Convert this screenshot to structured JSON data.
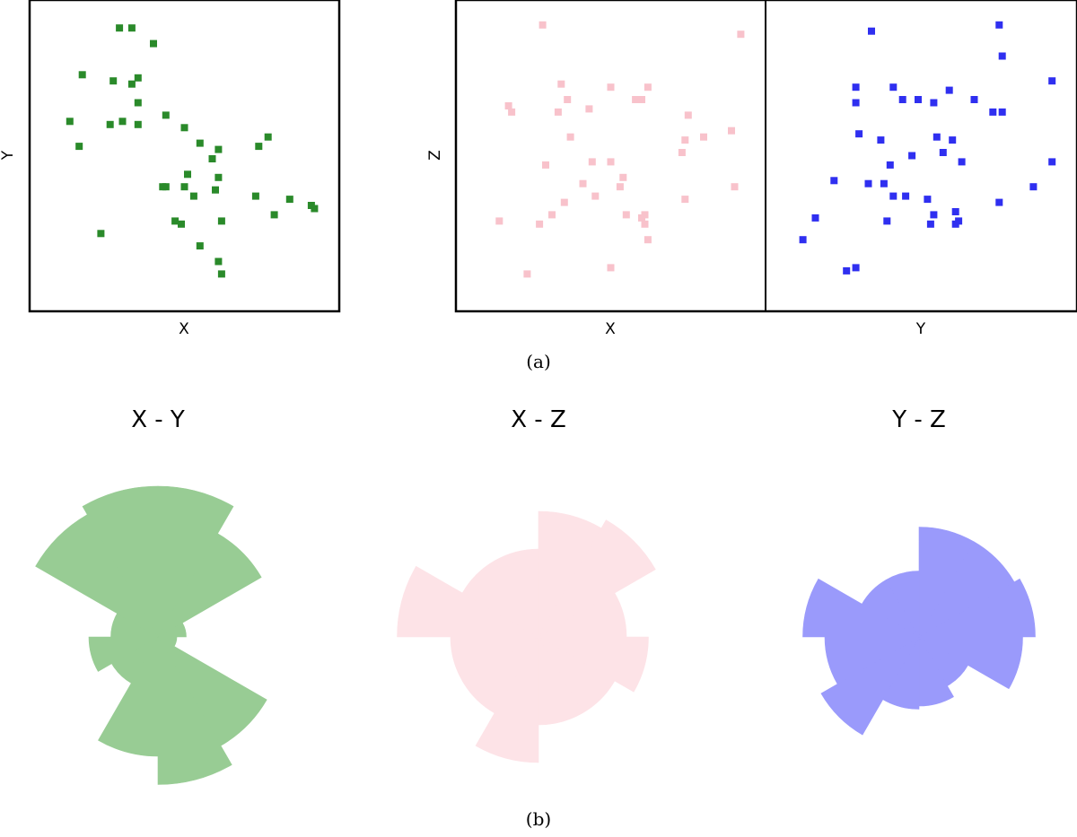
{
  "captions": {
    "a": "(a)",
    "b": "(b)"
  },
  "colors": {
    "green": "#2a8a2a",
    "pink": "#f8c2cb",
    "blue": "#2f2ff0",
    "green_rose": "#98cc94",
    "pink_rose": "#fde3e7",
    "blue_rose": "#9a9afb"
  },
  "chart_data": [
    {
      "type": "scatter",
      "xlabel": "X",
      "ylabel": "Y",
      "color": "#2a8a2a",
      "xlim": [
        0,
        100
      ],
      "ylim": [
        0,
        100
      ],
      "points": [
        [
          29,
          91
        ],
        [
          33,
          91
        ],
        [
          40,
          86
        ],
        [
          17,
          76
        ],
        [
          27,
          74
        ],
        [
          35,
          75
        ],
        [
          33,
          73
        ],
        [
          35,
          67
        ],
        [
          13,
          61
        ],
        [
          26,
          60
        ],
        [
          30,
          61
        ],
        [
          35,
          60
        ],
        [
          44,
          63
        ],
        [
          50,
          59
        ],
        [
          16,
          53
        ],
        [
          55,
          54
        ],
        [
          61,
          52
        ],
        [
          74,
          53
        ],
        [
          77,
          56
        ],
        [
          59,
          49
        ],
        [
          61,
          43
        ],
        [
          51,
          44
        ],
        [
          43,
          40
        ],
        [
          44,
          40
        ],
        [
          50,
          40
        ],
        [
          53,
          37
        ],
        [
          60,
          39
        ],
        [
          73,
          37
        ],
        [
          84,
          36
        ],
        [
          91,
          34
        ],
        [
          92,
          33
        ],
        [
          79,
          31
        ],
        [
          47,
          29
        ],
        [
          49,
          28
        ],
        [
          62,
          29
        ],
        [
          23,
          25
        ],
        [
          55,
          21
        ],
        [
          61,
          16
        ],
        [
          62,
          12
        ]
      ]
    },
    {
      "type": "scatter",
      "xlabel": "X",
      "ylabel": "Z",
      "color": "#f8c2cb",
      "xlim": [
        0,
        100
      ],
      "ylim": [
        0,
        100
      ],
      "points": [
        [
          28,
          92
        ],
        [
          92,
          89
        ],
        [
          34,
          73
        ],
        [
          50,
          72
        ],
        [
          62,
          72
        ],
        [
          36,
          68
        ],
        [
          58,
          68
        ],
        [
          60,
          68
        ],
        [
          17,
          66
        ],
        [
          18,
          64
        ],
        [
          33,
          64
        ],
        [
          43,
          65
        ],
        [
          75,
          63
        ],
        [
          89,
          58
        ],
        [
          37,
          56
        ],
        [
          74,
          55
        ],
        [
          80,
          56
        ],
        [
          73,
          51
        ],
        [
          29,
          47
        ],
        [
          44,
          48
        ],
        [
          50,
          48
        ],
        [
          54,
          43
        ],
        [
          41,
          41
        ],
        [
          53,
          40
        ],
        [
          45,
          37
        ],
        [
          74,
          36
        ],
        [
          90,
          40
        ],
        [
          35,
          35
        ],
        [
          31,
          31
        ],
        [
          55,
          31
        ],
        [
          60,
          30
        ],
        [
          61,
          31
        ],
        [
          14,
          29
        ],
        [
          27,
          28
        ],
        [
          61,
          28
        ],
        [
          62,
          23
        ],
        [
          50,
          14
        ],
        [
          23,
          12
        ]
      ]
    },
    {
      "type": "scatter",
      "xlabel": "Y",
      "ylabel": "Z",
      "color": "#2f2ff0",
      "xlim": [
        0,
        100
      ],
      "ylim": [
        0,
        100
      ],
      "points": [
        [
          75,
          92
        ],
        [
          34,
          90
        ],
        [
          76,
          82
        ],
        [
          92,
          74
        ],
        [
          29,
          72
        ],
        [
          41,
          72
        ],
        [
          59,
          71
        ],
        [
          29,
          67
        ],
        [
          44,
          68
        ],
        [
          49,
          68
        ],
        [
          54,
          67
        ],
        [
          67,
          68
        ],
        [
          73,
          64
        ],
        [
          76,
          64
        ],
        [
          30,
          57
        ],
        [
          55,
          56
        ],
        [
          60,
          55
        ],
        [
          37,
          55
        ],
        [
          47,
          50
        ],
        [
          57,
          51
        ],
        [
          63,
          48
        ],
        [
          40,
          47
        ],
        [
          22,
          42
        ],
        [
          33,
          41
        ],
        [
          38,
          41
        ],
        [
          86,
          40
        ],
        [
          92,
          48
        ],
        [
          41,
          37
        ],
        [
          45,
          37
        ],
        [
          52,
          36
        ],
        [
          75,
          35
        ],
        [
          54,
          31
        ],
        [
          61,
          32
        ],
        [
          62,
          29
        ],
        [
          16,
          30
        ],
        [
          39,
          29
        ],
        [
          53,
          28
        ],
        [
          61,
          28
        ],
        [
          12,
          23
        ],
        [
          26,
          13
        ],
        [
          29,
          14
        ]
      ]
    },
    {
      "type": "rose",
      "title": "X - Y",
      "color": "#98cc94",
      "sector_count": 12,
      "radii": [
        4.8,
        3.8,
        0.9,
        0.6,
        4.0,
        4.7,
        3.8,
        1.7,
        2.2,
        1.5,
        4.5,
        4.8
      ]
    },
    {
      "type": "rose",
      "title": "X - Z",
      "color": "#fde3e7",
      "sector_count": 12,
      "radii": [
        4.0,
        4.3,
        2.8,
        3.5,
        2.8,
        2.8,
        4.0,
        2.8,
        2.8,
        4.5,
        2.8,
        2.8
      ]
    },
    {
      "type": "rose",
      "title": "Y - Z",
      "color": "#9a9afb",
      "sector_count": 12,
      "radii": [
        3.5,
        3.5,
        3.7,
        3.3,
        1.8,
        2.2,
        2.3,
        3.6,
        3.0,
        3.7,
        2.1,
        2.1
      ]
    }
  ]
}
